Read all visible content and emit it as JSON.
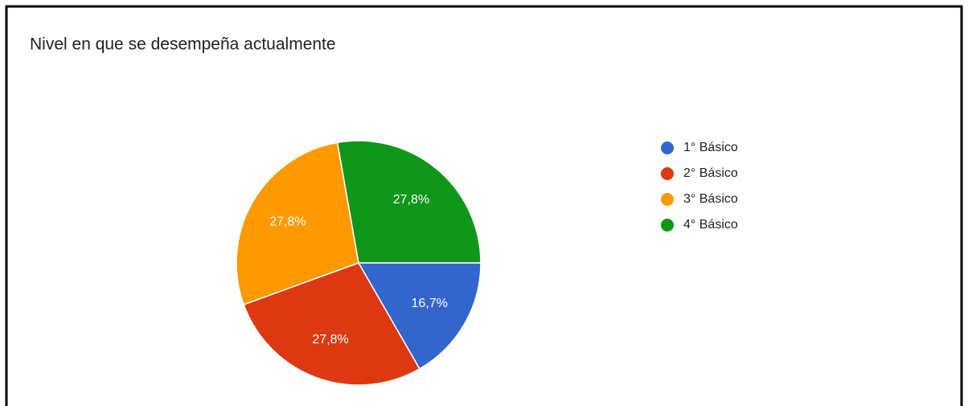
{
  "chart_data": {
    "type": "pie",
    "title": "Nivel en que se desempeña actualmente",
    "categories": [
      "1° Básico",
      "2° Básico",
      "3° Básico",
      "4° Básico"
    ],
    "values": [
      16.7,
      27.8,
      27.8,
      27.8
    ],
    "value_labels": [
      "16,7%",
      "27,8%",
      "27,8%",
      "27,8%"
    ],
    "colors": [
      "#3366cc",
      "#dc3912",
      "#ff9900",
      "#109618"
    ],
    "legend": "right"
  }
}
